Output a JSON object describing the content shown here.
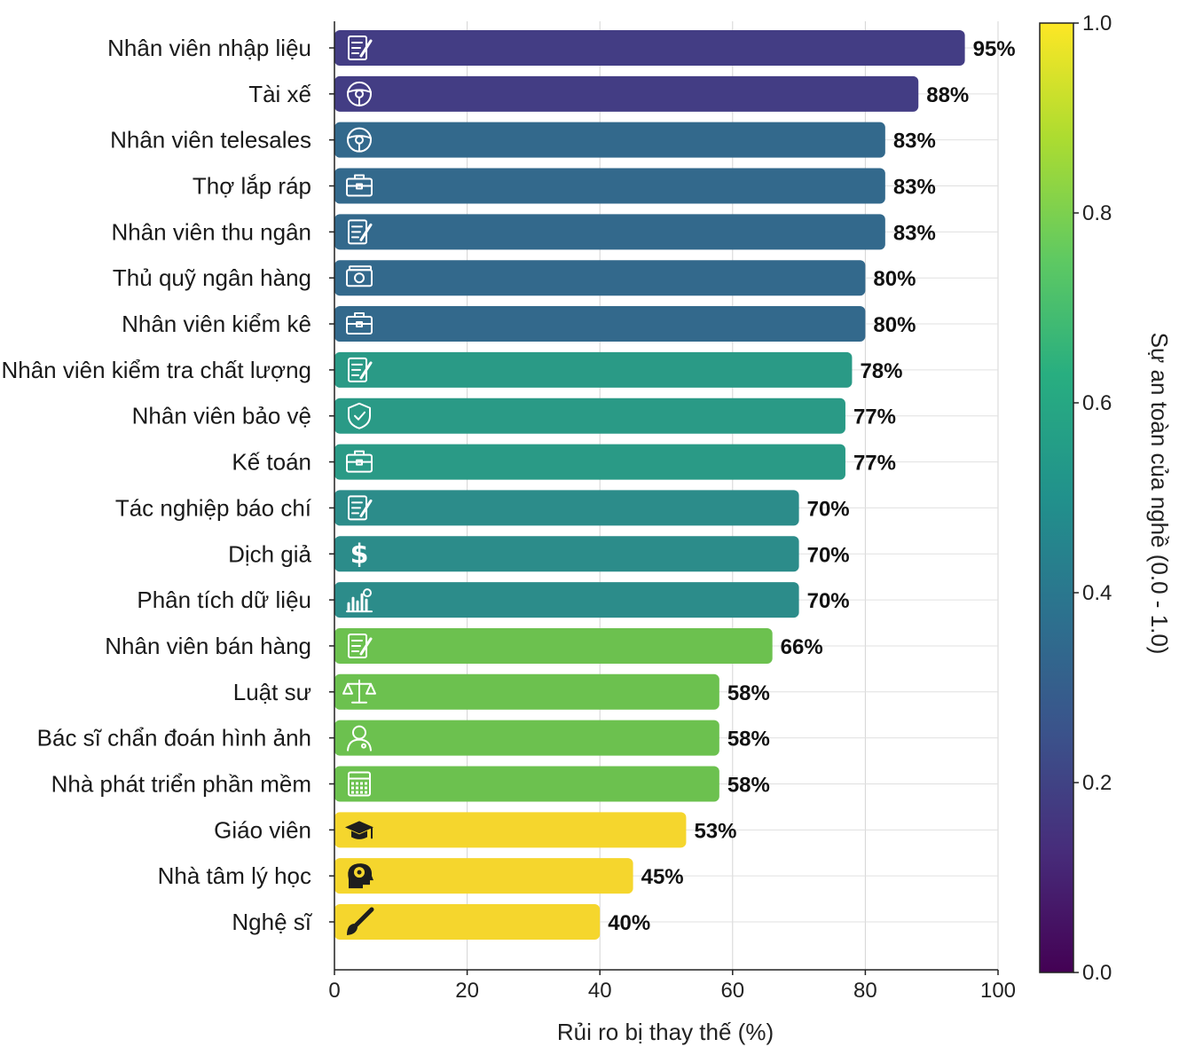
{
  "chart_data": {
    "type": "bar",
    "orientation": "horizontal",
    "categories": [
      "Nhân viên nhập liệu",
      "Tài xế",
      "Nhân viên telesales",
      "Thợ lắp ráp",
      "Nhân viên thu ngân",
      "Thủ quỹ ngân hàng",
      "Nhân viên kiểm kê",
      "Nhân viên kiểm tra chất lượng",
      "Nhân viên bảo vệ",
      "Kế toán",
      "Tác nghiệp báo chí",
      "Dịch giả",
      "Phân tích dữ liệu",
      "Nhân viên bán hàng",
      "Luật sư",
      "Bác sĩ chẩn đoán hình ảnh",
      "Nhà phát triển phần mềm",
      "Giáo viên",
      "Nhà tâm lý học",
      "Nghệ sĩ"
    ],
    "values": [
      95,
      88,
      83,
      83,
      83,
      80,
      80,
      78,
      77,
      77,
      70,
      70,
      70,
      66,
      58,
      58,
      58,
      53,
      45,
      40
    ],
    "value_labels": [
      "95%",
      "88%",
      "83%",
      "83%",
      "83%",
      "80%",
      "80%",
      "78%",
      "77%",
      "77%",
      "70%",
      "70%",
      "70%",
      "66%",
      "58%",
      "58%",
      "58%",
      "53%",
      "45%",
      "40%"
    ],
    "bar_colors": [
      "#433d84",
      "#433d84",
      "#33698c",
      "#33698c",
      "#33698c",
      "#33698c",
      "#33698c",
      "#2a9a86",
      "#2a9a86",
      "#2a9a86",
      "#2c8c8a",
      "#2c8c8a",
      "#2c8c8a",
      "#6cc14f",
      "#6cc14f",
      "#6cc14f",
      "#6cc14f",
      "#f5d62d",
      "#f5d62d",
      "#f5d62d"
    ],
    "icons": [
      "document-edit-icon",
      "steering-wheel-icon",
      "steering-wheel-icon",
      "briefcase-icon",
      "document-edit-icon",
      "banknote-icon",
      "briefcase-icon",
      "document-edit-icon",
      "shield-check-icon",
      "briefcase-icon",
      "document-edit-icon",
      "dollar-icon",
      "bar-chart-icon",
      "document-edit-icon",
      "scales-icon",
      "doctor-icon",
      "calculator-icon",
      "graduation-cap-icon",
      "brain-head-icon",
      "paintbrush-icon"
    ],
    "xlabel": "Rủi ro bị thay thế (%)",
    "xlim": [
      0,
      100
    ],
    "xticks": [
      0,
      20,
      40,
      60,
      80,
      100
    ],
    "grid": true,
    "colorbar": {
      "label": "Sự an toàn của nghề (0.0 - 1.0)",
      "range": [
        0.0,
        1.0
      ],
      "ticks": [
        "0.0",
        "0.2",
        "0.4",
        "0.6",
        "0.8",
        "1.0"
      ],
      "colormap": "viridis",
      "placement": "right"
    }
  }
}
